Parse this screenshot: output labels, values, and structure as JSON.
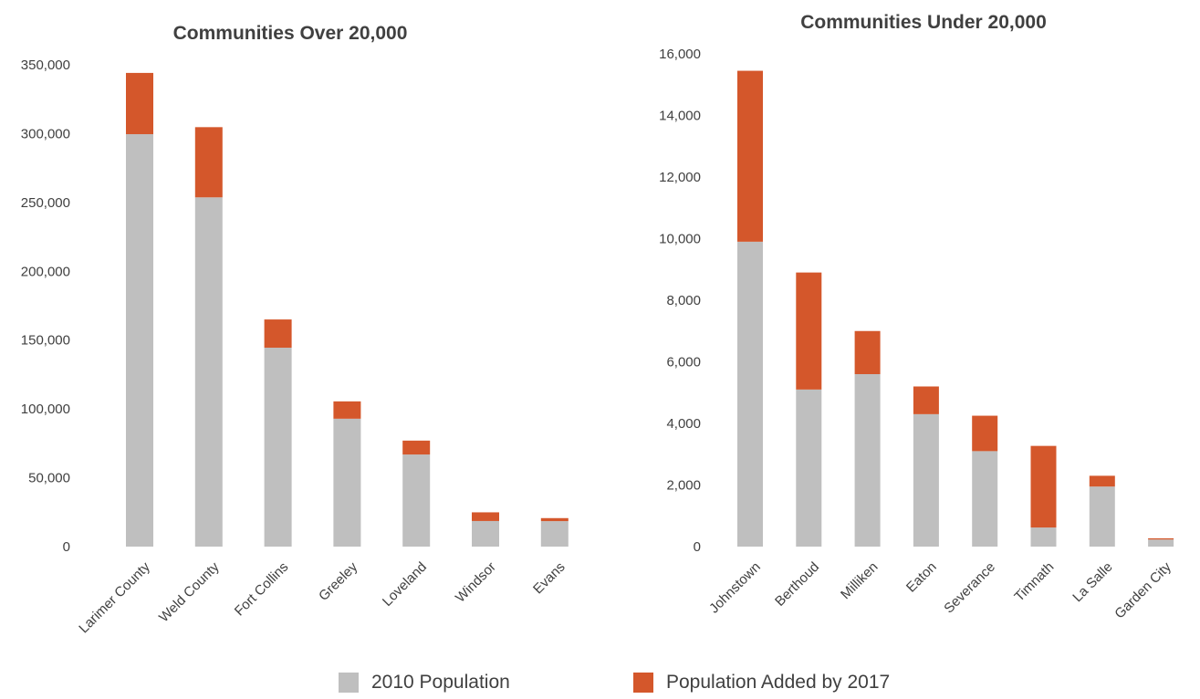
{
  "colors": {
    "base": "#bfbfbf",
    "added": "#d4572b",
    "text": "#404040"
  },
  "legend": {
    "items": [
      {
        "label": "2010 Population",
        "color": "#bfbfbf"
      },
      {
        "label": "Population Added by 2017",
        "color": "#d4572b"
      }
    ]
  },
  "chart_data": [
    {
      "type": "bar",
      "stacked": true,
      "title": "Communities Over 20,000",
      "xlabel": "",
      "ylabel": "",
      "ylim": [
        0,
        350000
      ],
      "yticks": [
        0,
        50000,
        100000,
        150000,
        200000,
        250000,
        300000,
        350000
      ],
      "ytick_labels": [
        "0",
        "50,000",
        "100,000",
        "150,000",
        "200,000",
        "250,000",
        "300,000",
        "350,000"
      ],
      "grid": false,
      "legend_position": "bottom",
      "categories": [
        "Larimer County",
        "Weld County",
        "Fort Collins",
        "Greeley",
        "Loveland",
        "Windsor",
        "Evans"
      ],
      "series": [
        {
          "name": "2010 Population",
          "values": [
            299600,
            253700,
            144500,
            92900,
            66900,
            18600,
            18500
          ]
        },
        {
          "name": "Population Added by 2017",
          "values": [
            44500,
            51000,
            20500,
            12600,
            10100,
            6300,
            2200
          ]
        }
      ]
    },
    {
      "type": "bar",
      "stacked": true,
      "title": "Communities Under 20,000",
      "xlabel": "",
      "ylabel": "",
      "ylim": [
        0,
        16000
      ],
      "yticks": [
        0,
        2000,
        4000,
        6000,
        8000,
        10000,
        12000,
        14000,
        16000
      ],
      "ytick_labels": [
        "0",
        "2,000",
        "4,000",
        "6,000",
        "8,000",
        "10,000",
        "12,000",
        "14,000",
        "16,000"
      ],
      "grid": false,
      "legend_position": "bottom",
      "categories": [
        "Johnstown",
        "Berthoud",
        "Milliken",
        "Eaton",
        "Severance",
        "Timnath",
        "La Salle",
        "Garden City"
      ],
      "series": [
        {
          "name": "2010 Population",
          "values": [
            9900,
            5100,
            5600,
            4300,
            3100,
            620,
            1950,
            230
          ]
        },
        {
          "name": "Population Added by 2017",
          "values": [
            5550,
            3800,
            1400,
            900,
            1150,
            2650,
            350,
            40
          ]
        }
      ]
    }
  ]
}
